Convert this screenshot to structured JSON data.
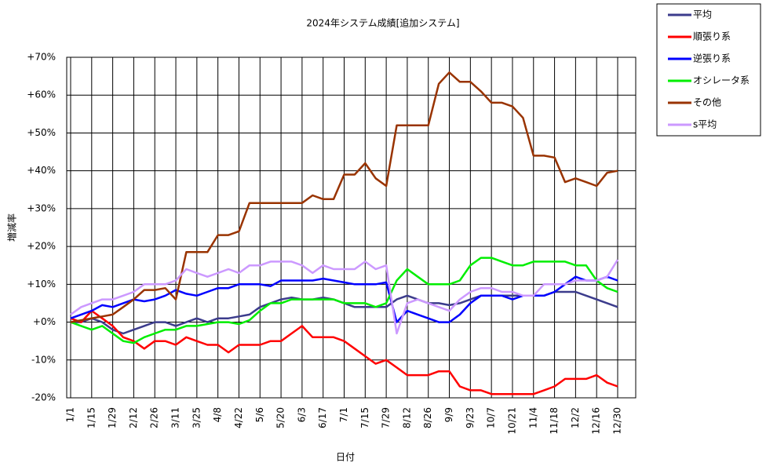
{
  "chart_data": {
    "type": "line",
    "title": "2024年システム成績[追加システム]",
    "x_label": "日付",
    "y_label": "増減率",
    "categories": [
      "1/1",
      null,
      "1/15",
      null,
      "1/29",
      null,
      "2/12",
      null,
      "2/26",
      null,
      "3/11",
      null,
      "3/25",
      null,
      "4/8",
      null,
      "4/22",
      null,
      "5/6",
      null,
      "5/20",
      null,
      "6/3",
      null,
      "6/17",
      null,
      "7/1",
      null,
      "7/15",
      null,
      "7/29",
      null,
      "8/12",
      null,
      "8/26",
      null,
      "9/9",
      null,
      "9/23",
      null,
      "10/7",
      null,
      "10/21",
      null,
      "11/4",
      null,
      "11/18",
      null,
      "12/2",
      null,
      "12/16",
      null,
      "12/30"
    ],
    "ylim": [
      -20,
      70
    ],
    "yticks": [
      {
        "value": -20,
        "label": "-20%"
      },
      {
        "value": -10,
        "label": "-10%"
      },
      {
        "value": 0,
        "label": "+0%"
      },
      {
        "value": 10,
        "label": "+10%"
      },
      {
        "value": 20,
        "label": "+20%"
      },
      {
        "value": 30,
        "label": "+30%"
      },
      {
        "value": 40,
        "label": "+40%"
      },
      {
        "value": 50,
        "label": "+50%"
      },
      {
        "value": 60,
        "label": "+60%"
      },
      {
        "value": 70,
        "label": "+70%"
      }
    ],
    "grid": true,
    "legend": "top-right",
    "series": [
      {
        "name": "平均",
        "color": "#3c3c8c",
        "values": [
          0,
          0,
          1,
          0,
          -2,
          -3,
          -2,
          -1,
          0,
          0,
          -1,
          0,
          1,
          0,
          1,
          1,
          1.5,
          2,
          4,
          5,
          6,
          6.5,
          6,
          6,
          6.5,
          6,
          5,
          4,
          4,
          4,
          4,
          6,
          7,
          6,
          5,
          5,
          4.5,
          5,
          6,
          7,
          7,
          7,
          7,
          7,
          7,
          7,
          8,
          8,
          8,
          7,
          6,
          5,
          4
        ]
      },
      {
        "name": "順張り系",
        "color": "#ff0000",
        "values": [
          1,
          0,
          3,
          1,
          -1,
          -4,
          -5,
          -7,
          -5,
          -5,
          -6,
          -4,
          -5,
          -6,
          -6,
          -8,
          -6,
          -6,
          -6,
          -5,
          -5,
          -3,
          -1,
          -4,
          -4,
          -4,
          -5,
          -7,
          -9,
          -11,
          -10,
          -12,
          -14,
          -14,
          -14,
          -13,
          -13,
          -17,
          -18,
          -18,
          -19,
          -19,
          -19,
          -19,
          -19,
          -18,
          -17,
          -15,
          -15,
          -15,
          -14,
          -16,
          -17
        ]
      },
      {
        "name": "逆張り系",
        "color": "#0000ff",
        "values": [
          1,
          2,
          3,
          4.5,
          4,
          5,
          6,
          5.5,
          6,
          7,
          8.5,
          7.5,
          7,
          8,
          9,
          9,
          10,
          10,
          10,
          9.5,
          11,
          11,
          11,
          11,
          11.5,
          11,
          10.5,
          10,
          10,
          10,
          10.5,
          0,
          3,
          2,
          1,
          0,
          0,
          2,
          5,
          7,
          7,
          7,
          6,
          7,
          7,
          7,
          8,
          10,
          12,
          11,
          11,
          12,
          11
        ]
      },
      {
        "name": "オシレータ系",
        "color": "#00ee00",
        "values": [
          0,
          -1,
          -2,
          -1,
          -3,
          -5,
          -5.5,
          -4,
          -3,
          -2,
          -2,
          -1,
          -1,
          -0.5,
          0,
          0,
          -0.5,
          0.5,
          3,
          5,
          5,
          6,
          6,
          6,
          6,
          6,
          5,
          5,
          5,
          4,
          5,
          11,
          14,
          12,
          10,
          10,
          10,
          11,
          15,
          17,
          17,
          16,
          15,
          15,
          16,
          16,
          16,
          16,
          15,
          15,
          11,
          9,
          8
        ]
      },
      {
        "name": "その他",
        "color": "#993300",
        "values": [
          0,
          0.5,
          1,
          1.5,
          2,
          4,
          6,
          8.5,
          8.5,
          9,
          6,
          18.5,
          18.5,
          18.5,
          23,
          23,
          24,
          31.5,
          31.5,
          31.5,
          31.5,
          31.5,
          31.5,
          33.5,
          32.5,
          32.5,
          39,
          39,
          42,
          38,
          36,
          52,
          52,
          52,
          52,
          63,
          66,
          63.5,
          63.5,
          61,
          58,
          58,
          57,
          54,
          44,
          44,
          43.5,
          37,
          38,
          37,
          36,
          39.5,
          40
        ]
      },
      {
        "name": "s平均",
        "color": "#cc99ff",
        "values": [
          2,
          4,
          5,
          6,
          6,
          7,
          8,
          10,
          10,
          10,
          11,
          14,
          13,
          12,
          13,
          14,
          13,
          15,
          15,
          16,
          16,
          16,
          15,
          13,
          15,
          14,
          14,
          14,
          16,
          14,
          15,
          -3,
          5,
          6,
          5,
          4,
          3,
          6,
          8,
          9,
          9,
          8,
          8,
          7,
          7,
          10,
          10,
          10,
          11,
          11,
          11,
          12,
          16.5
        ]
      }
    ]
  }
}
